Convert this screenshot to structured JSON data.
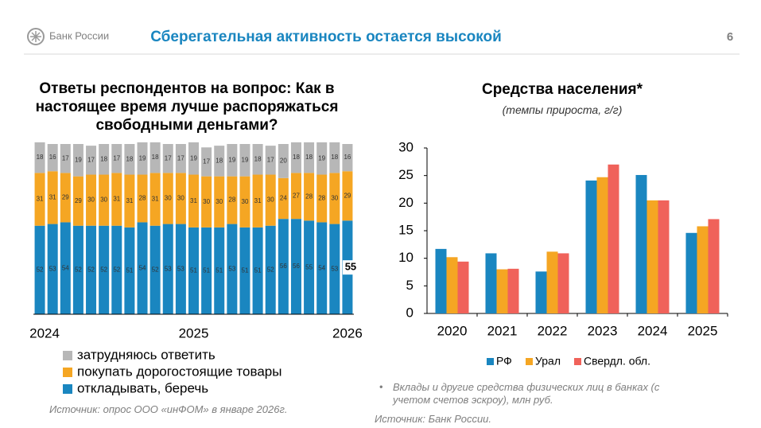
{
  "header": {
    "logo_text": "Банк России",
    "title": "Сберегательная активность остается высокой",
    "page_number": "6"
  },
  "chart_data": [
    {
      "type": "stacked_bar",
      "title": "Ответы респондентов на вопрос: Как в настоящее время лучше распоряжаться свободными деньгами?",
      "categories": [
        "2024",
        null,
        null,
        null,
        null,
        null,
        null,
        null,
        null,
        null,
        null,
        null,
        "2025",
        null,
        null,
        null,
        null,
        null,
        null,
        null,
        null,
        null,
        null,
        null,
        "2026"
      ],
      "series": [
        {
          "name": "откладывать, беречь",
          "color": "#1a86c0",
          "values": [
            52,
            53,
            54,
            52,
            52,
            52,
            52,
            51,
            54,
            52,
            53,
            53,
            51,
            51,
            51,
            53,
            51,
            51,
            52,
            56,
            56,
            55,
            54,
            53,
            55
          ]
        },
        {
          "name": "покупать дорогостоящие товары",
          "color": "#f5a623",
          "values": [
            31,
            31,
            29,
            29,
            30,
            30,
            31,
            31,
            28,
            31,
            30,
            30,
            31,
            30,
            30,
            28,
            30,
            31,
            30,
            24,
            27,
            28,
            28,
            30,
            29
          ]
        },
        {
          "name": "затрудняюсь ответить",
          "color": "#b7b7b7",
          "values": [
            18,
            16,
            17,
            19,
            17,
            18,
            17,
            18,
            19,
            18,
            17,
            17,
            19,
            17,
            18,
            19,
            19,
            18,
            17,
            20,
            18,
            18,
            19,
            18,
            16
          ]
        }
      ],
      "ylim": [
        0,
        100
      ],
      "source": "Источник: опрос ООО «инФОМ» в январе 2026г."
    },
    {
      "type": "bar",
      "title": "Средства населения*",
      "subtitle": "(темпы прироста, г/г)",
      "categories": [
        "2020",
        "2021",
        "2022",
        "2023",
        "2024",
        "2025"
      ],
      "series": [
        {
          "name": "РФ",
          "color": "#1a86c0",
          "values": [
            11.7,
            10.9,
            7.6,
            24.1,
            25.1,
            14.6
          ]
        },
        {
          "name": "Урал",
          "color": "#f5a623",
          "values": [
            10.2,
            8.0,
            11.2,
            24.7,
            20.5,
            15.8
          ]
        },
        {
          "name": "Свердл. обл.",
          "color": "#f0625a",
          "values": [
            9.4,
            8.1,
            10.9,
            27.0,
            20.5,
            17.1
          ]
        }
      ],
      "ylim": [
        0,
        30
      ],
      "yticks": [
        0,
        5,
        10,
        15,
        20,
        25,
        30
      ],
      "note": "Вклады и другие средства физических лиц в банках (с учетом счетов эскроу), млн руб.",
      "source": "Источник: Банк России."
    }
  ]
}
